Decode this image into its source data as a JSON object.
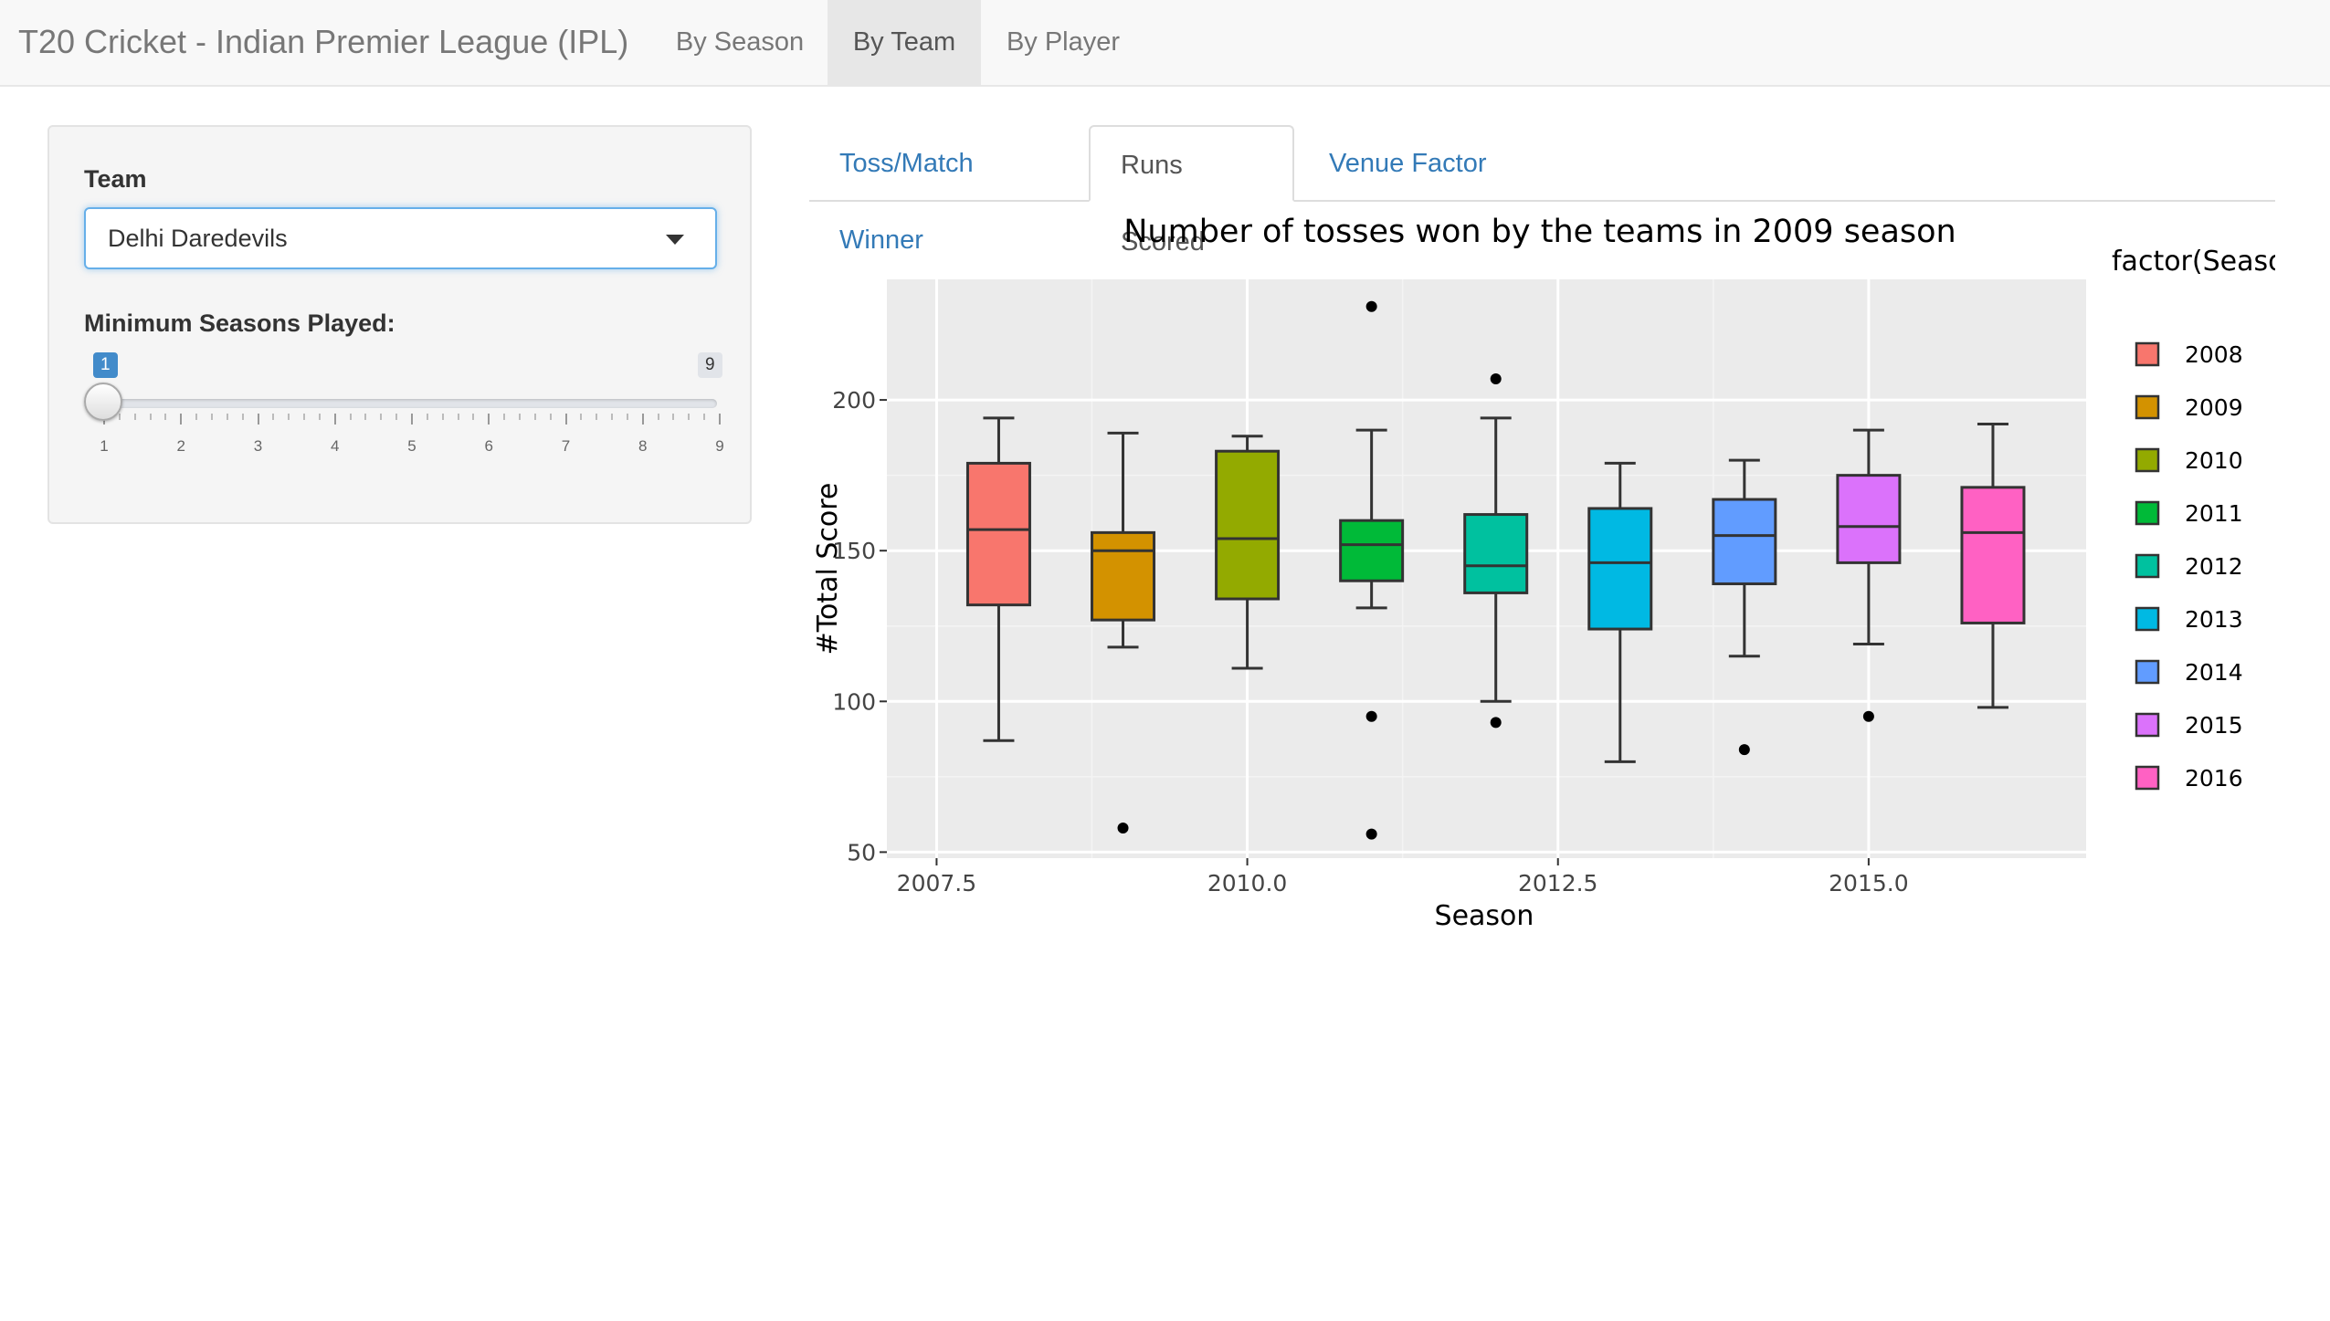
{
  "navbar": {
    "brand": "T20 Cricket - Indian Premier League (IPL)",
    "items": [
      {
        "label": "By Season",
        "active": false
      },
      {
        "label": "By Team",
        "active": true
      },
      {
        "label": "By Player",
        "active": false
      }
    ]
  },
  "sidebar": {
    "team_label": "Team",
    "team_value": "Delhi Daredevils",
    "min_seasons_label": "Minimum Seasons Played:",
    "slider": {
      "min": "1",
      "max": "9",
      "value": "1",
      "ticks": [
        "1",
        "2",
        "3",
        "4",
        "5",
        "6",
        "7",
        "8",
        "9"
      ]
    }
  },
  "tabs": [
    {
      "label": "Toss/Match Winner",
      "active": false
    },
    {
      "label": "Runs Scored",
      "active": true
    },
    {
      "label": "Venue Factor",
      "active": false
    }
  ],
  "chart_data": {
    "type": "boxplot",
    "title": "Number of tosses won by the teams in 2009 season",
    "xlabel": "Season",
    "ylabel": "#Total Score",
    "xlim": [
      2007.1,
      2016.75
    ],
    "ylim": [
      48,
      240
    ],
    "xticks": [
      "2007.5",
      "2010.0",
      "2012.5",
      "2015.0"
    ],
    "yticks": [
      "50",
      "100",
      "150",
      "200"
    ],
    "legend_title": "factor(Season)",
    "legend_position": "right",
    "grid": true,
    "series": [
      {
        "name": "2008",
        "x": 2008,
        "color": "#F8766D",
        "min": 87,
        "q1": 132,
        "median": 157,
        "q3": 179,
        "max": 194,
        "outliers": []
      },
      {
        "name": "2009",
        "x": 2009,
        "color": "#D39200",
        "min": 118,
        "q1": 127,
        "median": 150,
        "q3": 156,
        "max": 189,
        "outliers": [
          58
        ]
      },
      {
        "name": "2010",
        "x": 2010,
        "color": "#93AA00",
        "min": 111,
        "q1": 134,
        "median": 154,
        "q3": 183,
        "max": 188,
        "outliers": []
      },
      {
        "name": "2011",
        "x": 2011,
        "color": "#00BA38",
        "min": 131,
        "q1": 140,
        "median": 152,
        "q3": 160,
        "max": 190,
        "outliers": [
          231,
          95,
          56
        ]
      },
      {
        "name": "2012",
        "x": 2012,
        "color": "#00C19F",
        "min": 100,
        "q1": 136,
        "median": 145,
        "q3": 162,
        "max": 194,
        "outliers": [
          207,
          93
        ]
      },
      {
        "name": "2013",
        "x": 2013,
        "color": "#00B9E3",
        "min": 80,
        "q1": 124,
        "median": 146,
        "q3": 164,
        "max": 179,
        "outliers": []
      },
      {
        "name": "2014",
        "x": 2014,
        "color": "#619CFF",
        "min": 115,
        "q1": 139,
        "median": 155,
        "q3": 167,
        "max": 180,
        "outliers": [
          84
        ]
      },
      {
        "name": "2015",
        "x": 2015,
        "color": "#DB72FB",
        "min": 119,
        "q1": 146,
        "median": 158,
        "q3": 175,
        "max": 190,
        "outliers": [
          95
        ]
      },
      {
        "name": "2016",
        "x": 2016,
        "color": "#FF61C3",
        "min": 98,
        "q1": 126,
        "median": 156,
        "q3": 171,
        "max": 192,
        "outliers": []
      }
    ]
  }
}
